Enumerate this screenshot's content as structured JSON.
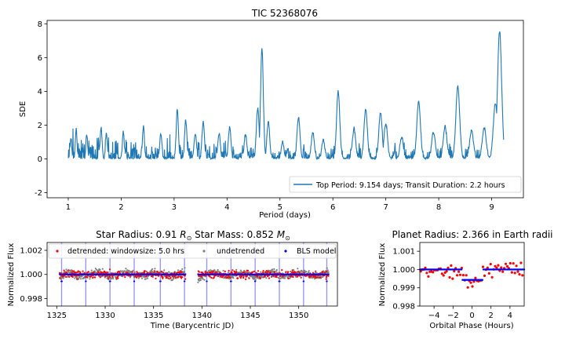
{
  "colors": {
    "periodogram": "#1f77b4",
    "detrended": "#ff0000",
    "undetrended": "#808080",
    "bls_model": "#0000ff",
    "transit_lines": "#8080ff"
  },
  "chart_data": [
    {
      "id": "periodogram",
      "type": "line",
      "title": "TIC 52368076",
      "xlabel": "Period (days)",
      "ylabel": "SDE",
      "xlim": [
        0.6,
        9.6
      ],
      "ylim": [
        -2.3,
        8.2
      ],
      "xticks": [
        1,
        2,
        3,
        4,
        5,
        6,
        7,
        8,
        9
      ],
      "yticks": [
        -2,
        0,
        2,
        4,
        6,
        8
      ],
      "legend": {
        "position": "lower-right",
        "entries": [
          {
            "label": "Top Period: 9.154 days; Transit Duration: 2.2 hours",
            "marker": "line"
          }
        ]
      },
      "peaks": [
        {
          "x": 1.05,
          "y": 1.2
        },
        {
          "x": 1.15,
          "y": 1.8
        },
        {
          "x": 1.35,
          "y": 1.4
        },
        {
          "x": 1.62,
          "y": 1.9
        },
        {
          "x": 1.72,
          "y": 1.5
        },
        {
          "x": 2.04,
          "y": 1.6
        },
        {
          "x": 2.42,
          "y": 1.9
        },
        {
          "x": 2.75,
          "y": 1.5
        },
        {
          "x": 3.06,
          "y": 2.9
        },
        {
          "x": 3.22,
          "y": 2.3
        },
        {
          "x": 3.4,
          "y": 1.5
        },
        {
          "x": 3.55,
          "y": 2.2
        },
        {
          "x": 3.85,
          "y": 1.5
        },
        {
          "x": 4.05,
          "y": 1.9
        },
        {
          "x": 4.35,
          "y": 1.5
        },
        {
          "x": 4.58,
          "y": 3.0
        },
        {
          "x": 4.66,
          "y": 6.6
        },
        {
          "x": 4.78,
          "y": 2.2
        },
        {
          "x": 5.05,
          "y": 1.0
        },
        {
          "x": 5.35,
          "y": 2.5
        },
        {
          "x": 5.62,
          "y": 1.6
        },
        {
          "x": 5.82,
          "y": 1.1
        },
        {
          "x": 6.1,
          "y": 4.0
        },
        {
          "x": 6.4,
          "y": 1.8
        },
        {
          "x": 6.62,
          "y": 2.9
        },
        {
          "x": 6.9,
          "y": 2.7
        },
        {
          "x": 7.0,
          "y": 2.1
        },
        {
          "x": 7.3,
          "y": 1.3
        },
        {
          "x": 7.62,
          "y": 3.4
        },
        {
          "x": 7.9,
          "y": 1.6
        },
        {
          "x": 8.12,
          "y": 1.9
        },
        {
          "x": 8.36,
          "y": 4.3
        },
        {
          "x": 8.62,
          "y": 1.7
        },
        {
          "x": 8.86,
          "y": 1.8
        },
        {
          "x": 9.07,
          "y": 3.3
        },
        {
          "x": 9.15,
          "y": 7.6
        }
      ]
    },
    {
      "id": "lightcurve",
      "type": "scatter",
      "title_left_prefix": "Star Radius: 0.91 ",
      "title_left_unit": "R",
      "title_right_prefix": "Star Mass: 0.852 ",
      "title_right_unit": "M",
      "title_unit_sub": "⊙",
      "xlabel": "Time (Barycentric JD)",
      "ylabel": "Normalized Flux",
      "xlim": [
        1324.0,
        1354.0
      ],
      "ylim": [
        0.99738,
        1.00265
      ],
      "xticks": [
        1325,
        1330,
        1335,
        1340,
        1345,
        1350
      ],
      "yticks": [
        0.998,
        1.0,
        1.002
      ],
      "ytick_labels": [
        "0.998",
        "1.000",
        "1.002"
      ],
      "segments": [
        [
          1325.3,
          1338.3
        ],
        [
          1339.6,
          1353.1
        ]
      ],
      "transit_times": [
        1325.5,
        1328.0,
        1330.5,
        1333.0,
        1335.7,
        1338.2,
        1340.5,
        1343.0,
        1345.5,
        1348.0,
        1350.5,
        1352.9
      ],
      "legend": {
        "position": "top",
        "entries": [
          {
            "label": "detrended: windowsize: 5.0 hrs",
            "marker": "dot-red"
          },
          {
            "label": "undetrended",
            "marker": "dot-gray"
          },
          {
            "label": "BLS model",
            "marker": "dot-blue"
          }
        ]
      }
    },
    {
      "id": "phasefold",
      "type": "scatter",
      "title": "Planet Radius: 2.366 in Earth radii",
      "xlabel": "Orbital Phase (Hours)",
      "ylabel": "Normalized Flux",
      "xlim": [
        -5.5,
        5.5
      ],
      "ylim": [
        0.998,
        1.00148
      ],
      "xticks": [
        -4,
        -2,
        0,
        2,
        4
      ],
      "xtick_labels": [
        "−4",
        "−2",
        "0",
        "2",
        "4"
      ],
      "yticks": [
        0.998,
        0.999,
        1.0,
        1.001
      ],
      "ytick_labels": [
        "0.998",
        "0.999",
        "1.000",
        "1.001"
      ],
      "transit_window": [
        -1.1,
        1.1
      ],
      "transit_depth": 0.99943
    }
  ]
}
